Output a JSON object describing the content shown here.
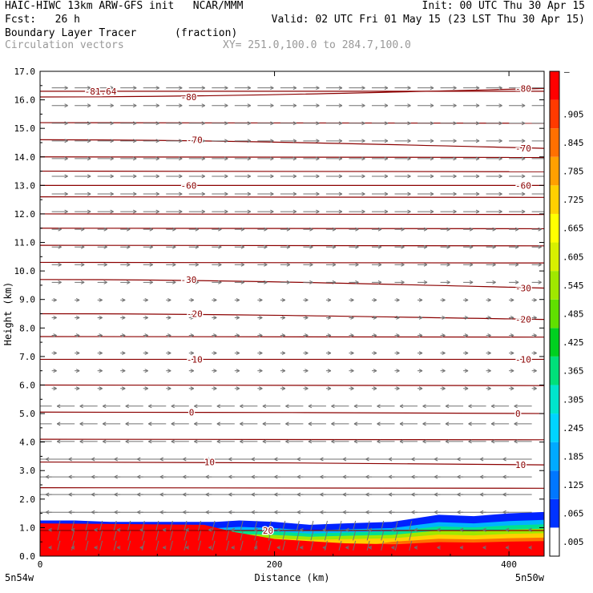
{
  "header": {
    "line1_left": "HAIC-HIWC 13km ARW-GFS init   NCAR/MMM",
    "line1_right": "Init: 00 UTC Thu 30 Apr 15",
    "line2_left": "Fcst:   26 h",
    "line2_right": "Valid: 02 UTC Fri 01 May 15 (23 LST Thu 30 Apr 15)",
    "line3_field": "Boundary Layer Tracer",
    "line3_units": "(fraction)",
    "line4_field": "Circulation vectors",
    "line4_xy": "XY= 251.0,100.0 to 284.7,100.0"
  },
  "chart_data": {
    "type": "heatmap",
    "xlabel": "Distance (km)",
    "ylabel": "Height (km)",
    "xlim": [
      0,
      430
    ],
    "ylim": [
      0,
      17
    ],
    "x_ticks": [
      0,
      200,
      400
    ],
    "y_ticks": [
      0.0,
      1.0,
      2.0,
      3.0,
      4.0,
      5.0,
      6.0,
      7.0,
      8.0,
      9.0,
      10.0,
      11.0,
      12.0,
      13.0,
      14.0,
      15.0,
      16.0,
      17.0
    ],
    "y_tick_labels": [
      "0.0",
      "1.0",
      "2.0",
      "3.0",
      "4.0",
      "5.0",
      "6.0",
      "7.0",
      "8.0",
      "9.0",
      "10.0",
      "11.0",
      "12.0",
      "13.0",
      "14.0",
      "15.0",
      "16.0",
      "17.0"
    ],
    "x_endpoint_labels": [
      "5n54w",
      "5n50w"
    ],
    "colorbar": {
      "labels": [
        ".005",
        ".065",
        ".125",
        ".185",
        ".245",
        ".305",
        ".365",
        ".425",
        ".485",
        ".545",
        ".605",
        ".665",
        ".725",
        ".785",
        ".845",
        ".905"
      ],
      "top_label": "–",
      "colors": [
        "#ffffff",
        "#0033ff",
        "#0077ff",
        "#00aaff",
        "#00d4ff",
        "#00e5cc",
        "#00e07a",
        "#00d020",
        "#60e000",
        "#a0e800",
        "#d8f000",
        "#ffff00",
        "#ffd000",
        "#ffa000",
        "#ff7000",
        "#ff3a00",
        "#ff0000"
      ]
    },
    "temperature_contours": [
      {
        "label": "-81.64",
        "y": [
          16.3,
          16.3
        ],
        "x_label": 38
      },
      {
        "label": "-80",
        "y": [
          16.1,
          16.4
        ],
        "x_label": 120
      },
      {
        "label": "-70",
        "y": [
          14.6,
          14.3
        ],
        "x_label": 125
      },
      {
        "label": "-60",
        "y": [
          13.0,
          13.0
        ],
        "x_label": 120
      },
      {
        "label": "-30",
        "y": [
          9.7,
          9.4
        ],
        "x_label": 120
      },
      {
        "label": "-20",
        "y": [
          8.5,
          8.3
        ],
        "x_label": 125
      },
      {
        "label": "-10",
        "y": [
          6.9,
          6.9
        ],
        "x_label": 125
      },
      {
        "label": "0",
        "y": [
          5.05,
          5.0
        ],
        "x_label": 127
      },
      {
        "label": "10",
        "y": [
          3.3,
          3.2
        ],
        "x_label": 140
      },
      {
        "label": "20",
        "y": [
          0.9,
          0.9
        ],
        "x_label": 190
      }
    ],
    "other_contours": [
      2.4,
      4.1,
      6.0,
      7.7,
      10.3,
      10.9,
      11.5,
      12.0,
      12.6,
      13.5,
      14.0,
      15.2
    ],
    "tracer_layer": {
      "top_km": [
        1.25,
        1.25,
        1.2,
        1.2,
        1.2,
        1.2,
        1.25,
        1.2,
        1.1,
        1.15,
        1.2,
        1.45,
        1.4,
        1.5,
        1.55
      ],
      "x_km": [
        0,
        30,
        60,
        90,
        120,
        150,
        170,
        200,
        230,
        260,
        300,
        340,
        370,
        400,
        430
      ]
    },
    "vectors": {
      "upper_direction": "east",
      "lower_direction": "west"
    }
  }
}
